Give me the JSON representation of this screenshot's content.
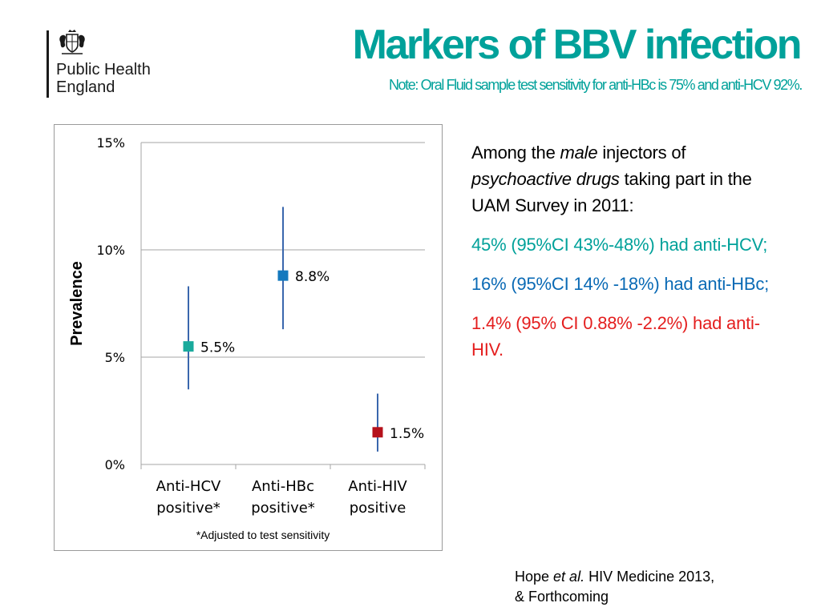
{
  "logo": {
    "org_name": "Public Health\nEngland",
    "crest_icon": "royal-coat-of-arms-icon"
  },
  "header": {
    "title": "Markers of BBV infection",
    "subtitle": "Note: Oral Fluid sample test sensitivity for anti-HBc is 75% and anti-HCV 92%."
  },
  "chart_data": {
    "type": "scatter",
    "ylabel": "Prevalence",
    "ylim": [
      0,
      15
    ],
    "yticks": [
      "0%",
      "5%",
      "10%",
      "15%"
    ],
    "ytick_values": [
      0,
      5,
      10,
      15
    ],
    "grid": true,
    "categories": [
      [
        "Anti-HCV",
        "positive*"
      ],
      [
        "Anti-HBc",
        "positive*"
      ],
      [
        "Anti-HIV",
        "positive"
      ]
    ],
    "points": [
      {
        "value": 5.5,
        "label": "5.5%",
        "ci_low": 3.5,
        "ci_high": 8.3,
        "color": "#1aaa9c"
      },
      {
        "value": 8.8,
        "label": "8.8%",
        "ci_low": 6.3,
        "ci_high": 12.0,
        "color": "#1479be"
      },
      {
        "value": 1.5,
        "label": "1.5%",
        "ci_low": 0.6,
        "ci_high": 3.3,
        "color": "#b5111b"
      }
    ],
    "errorbar_color": "#3a67ad",
    "footnote": "*Adjusted to test sensitivity"
  },
  "summary": {
    "intro_before": "Among the ",
    "intro_male": "male",
    "intro_mid": " injectors of ",
    "intro_drugs": "psychoactive drugs",
    "intro_after": " taking part in the UAM Survey in 2011:",
    "hcv": "45% (95%CI 43%-48%) had anti-HCV;",
    "hbc": "16% (95%CI 14% -18%) had anti-HBc;",
    "hiv": "1.4% (95% CI 0.88% -2.2%) had anti-HIV."
  },
  "citation": {
    "author": "Hope ",
    "etal": "et al.",
    "journal": " HIV Medicine 2013,",
    "line2": " & Forthcoming"
  },
  "colors": {
    "title": "#00a19a",
    "hcv": "#00a19a",
    "hbc": "#0a6ab5",
    "hiv": "#e41e1e",
    "grid": "#a6a6a6"
  }
}
